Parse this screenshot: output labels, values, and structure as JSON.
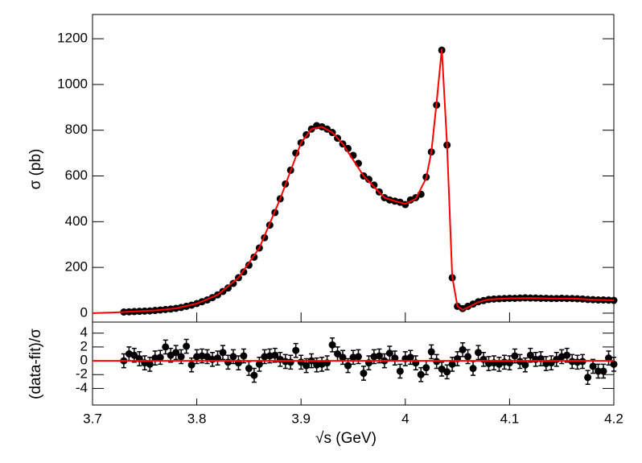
{
  "chart_data": [
    {
      "type": "scatter",
      "ylabel": "σ (pb)",
      "xlim": [
        3.7,
        4.2
      ],
      "ylim": [
        -39,
        1306
      ],
      "yticks": [
        0,
        200,
        400,
        600,
        800,
        1000,
        1200
      ],
      "series": [
        {
          "mode": "markers",
          "color": "#000000",
          "x": [
            3.73,
            3.735,
            3.74,
            3.745,
            3.75,
            3.755,
            3.76,
            3.765,
            3.77,
            3.775,
            3.78,
            3.785,
            3.79,
            3.795,
            3.8,
            3.805,
            3.81,
            3.815,
            3.82,
            3.825,
            3.83,
            3.835,
            3.84,
            3.845,
            3.85,
            3.855,
            3.86,
            3.865,
            3.87,
            3.875,
            3.88,
            3.885,
            3.89,
            3.895,
            3.9,
            3.905,
            3.91,
            3.915,
            3.92,
            3.925,
            3.93,
            3.935,
            3.94,
            3.945,
            3.95,
            3.955,
            3.96,
            3.965,
            3.97,
            3.975,
            3.98,
            3.985,
            3.99,
            3.995,
            4.0,
            4.005,
            4.01,
            4.015,
            4.02,
            4.025,
            4.03,
            4.035,
            4.04,
            4.045,
            4.05,
            4.055,
            4.06,
            4.065,
            4.07,
            4.075,
            4.08,
            4.085,
            4.09,
            4.095,
            4.1,
            4.105,
            4.11,
            4.115,
            4.12,
            4.125,
            4.13,
            4.135,
            4.14,
            4.145,
            4.15,
            4.155,
            4.16,
            4.165,
            4.17,
            4.175,
            4.18,
            4.185,
            4.19,
            4.195,
            4.2
          ],
          "values": [
            5,
            6,
            7,
            8,
            9,
            10,
            12,
            14,
            16,
            18,
            21,
            25,
            30,
            35,
            42,
            50,
            58,
            68,
            80,
            95,
            110,
            130,
            155,
            180,
            210,
            245,
            285,
            330,
            385,
            440,
            500,
            565,
            625,
            700,
            745,
            780,
            805,
            820,
            815,
            805,
            790,
            765,
            740,
            720,
            690,
            655,
            600,
            585,
            560,
            530,
            505,
            495,
            490,
            485,
            475,
            495,
            505,
            520,
            595,
            705,
            910,
            1150,
            735,
            155,
            30,
            20,
            30,
            40,
            50,
            55,
            60,
            62,
            63,
            64,
            65,
            65,
            66,
            67,
            66,
            66,
            65,
            65,
            64,
            64,
            65,
            64,
            64,
            63,
            62,
            60,
            59,
            58,
            58,
            57,
            56
          ]
        },
        {
          "mode": "line",
          "color": "#ff0000",
          "x": [
            3.7,
            3.72,
            3.74,
            3.76,
            3.78,
            3.8,
            3.82,
            3.84,
            3.86,
            3.88,
            3.9,
            3.91,
            3.92,
            3.93,
            3.94,
            3.96,
            3.98,
            3.99,
            4.0,
            4.01,
            4.02,
            4.025,
            4.03,
            4.035,
            4.04,
            4.045,
            4.05,
            4.055,
            4.06,
            4.07,
            4.08,
            4.1,
            4.12,
            4.14,
            4.16,
            4.18,
            4.2
          ],
          "values": [
            0,
            3,
            7,
            12,
            21,
            42,
            80,
            155,
            285,
            500,
            745,
            805,
            815,
            790,
            740,
            600,
            505,
            490,
            478,
            500,
            590,
            705,
            920,
            1155,
            740,
            160,
            30,
            15,
            25,
            48,
            60,
            65,
            66,
            64,
            64,
            59,
            56
          ]
        }
      ]
    },
    {
      "type": "scatter",
      "xlabel": "√s (GeV)",
      "ylabel": "(data-fit)/σ",
      "xlim": [
        3.7,
        4.2
      ],
      "ylim": [
        -6.4,
        5.6
      ],
      "xticks": [
        3.7,
        3.8,
        3.9,
        4,
        4.1,
        4.2
      ],
      "yticks": [
        -4,
        -2,
        0,
        2,
        4
      ],
      "series": [
        {
          "mode": "markers",
          "color": "#000000",
          "error": 1,
          "values": [
            0,
            1,
            0.8,
            0.3,
            -0.3,
            -0.5,
            0.4,
            0.5,
            2,
            0.8,
            1.2,
            0.6,
            2.1,
            -0.6,
            0.6,
            0.7,
            0.6,
            0.2,
            0.4,
            1.2,
            -0.2,
            0.6,
            -0.3,
            0.7,
            -1.1,
            -2.1,
            -0.5,
            0.6,
            0.7,
            0.8,
            0.2,
            -0.1,
            -0.2,
            1.5,
            -0.2,
            -0.7,
            0,
            -0.6,
            -0.5,
            -0.3,
            2.3,
            1,
            0.5,
            -0.7,
            0.5,
            0.6,
            -1.8,
            -0.3,
            0.6,
            0.7,
            0,
            1.1,
            0.4,
            -1.5,
            0.3,
            0.5,
            -0.3,
            -2,
            -1,
            1.3,
            -0.1,
            -1.2,
            -1.6,
            -0.5,
            0.3,
            1.6,
            0.6,
            -1.1,
            1.2,
            0.2,
            -0.4,
            -0.3,
            -0.5,
            -0.2,
            -0.3,
            0.7,
            -0.1,
            -0.6,
            0.8,
            0.2,
            0.3,
            -0.4,
            -0.3,
            0.2,
            0.6,
            0.8,
            -0.1,
            -0.2,
            -0.1,
            -2.4,
            -0.8,
            -1.5,
            -1.5,
            0.4,
            -0.5
          ]
        },
        {
          "mode": "line",
          "color": "#ff0000",
          "x": [
            3.7,
            4.2
          ],
          "values": [
            0,
            0
          ]
        }
      ]
    }
  ]
}
